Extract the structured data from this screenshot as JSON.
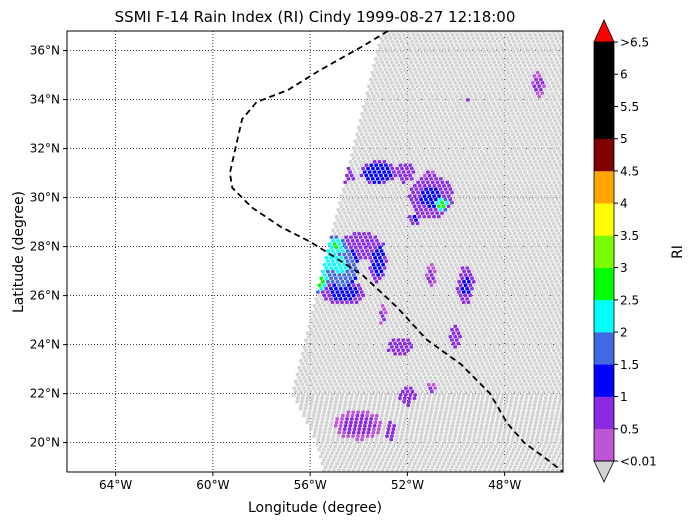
{
  "figure": {
    "title": "SSMI F-14 Rain Index (RI) Cindy 1999-08-27 12:18:00",
    "xlabel": "Longitude (degree)",
    "ylabel": "Latitude (degree)",
    "colorbar_label": "RI"
  },
  "chart_data": {
    "type": "heatmap",
    "title": "SSMI F-14 Rain Index (RI) Cindy 1999-08-27 12:18:00",
    "xlabel": "Longitude (degree)",
    "ylabel": "Latitude (degree)",
    "xlim": [
      -66,
      -45.6
    ],
    "ylim": [
      18.8,
      36.8
    ],
    "x_ticks": [
      {
        "value": -64,
        "label": "64°W"
      },
      {
        "value": -60,
        "label": "60°W"
      },
      {
        "value": -56,
        "label": "56°W"
      },
      {
        "value": -52,
        "label": "52°W"
      },
      {
        "value": -48,
        "label": "48°W"
      }
    ],
    "y_ticks": [
      {
        "value": 20,
        "label": "20°N"
      },
      {
        "value": 22,
        "label": "22°N"
      },
      {
        "value": 24,
        "label": "24°N"
      },
      {
        "value": 26,
        "label": "26°N"
      },
      {
        "value": 28,
        "label": "28°N"
      },
      {
        "value": 30,
        "label": "30°N"
      },
      {
        "value": 32,
        "label": "32°N"
      },
      {
        "value": 34,
        "label": "34°N"
      },
      {
        "value": 36,
        "label": "36°N"
      }
    ],
    "grid": "dotted",
    "swath_edges": {
      "west": [
        [
          -53,
          36.8
        ],
        [
          -54.2,
          32
        ],
        [
          -55.7,
          26
        ],
        [
          -56.7,
          22
        ],
        [
          -55.7,
          20
        ],
        [
          -55.4,
          18.8
        ]
      ],
      "east": [
        [
          -45.6,
          18.8
        ],
        [
          -45.6,
          36.8
        ]
      ],
      "no_rain_color": "#d3d3d3"
    },
    "track_lon_lat": [
      [
        -52.8,
        36.8
      ],
      [
        -53.8,
        36.2
      ],
      [
        -55.6,
        35.2
      ],
      [
        -56.9,
        34.4
      ],
      [
        -58.2,
        33.9
      ],
      [
        -58.8,
        33.2
      ],
      [
        -59.1,
        31.9
      ],
      [
        -59.3,
        31.0
      ],
      [
        -59.2,
        30.4
      ],
      [
        -58.4,
        29.6
      ],
      [
        -57.2,
        28.8
      ],
      [
        -56.0,
        28.2
      ],
      [
        -55.2,
        27.7
      ],
      [
        -53.8,
        26.8
      ],
      [
        -52.4,
        25.5
      ],
      [
        -51.2,
        24.2
      ],
      [
        -49.8,
        23.2
      ],
      [
        -48.6,
        22.0
      ],
      [
        -47.9,
        20.8
      ],
      [
        -47.2,
        20.0
      ],
      [
        -46.1,
        19.2
      ],
      [
        -45.6,
        18.8
      ]
    ],
    "colorbar": {
      "label": "RI",
      "bounds": [
        0.01,
        0.5,
        1,
        1.5,
        2,
        2.5,
        3,
        3.5,
        4,
        4.5,
        5,
        5.5,
        6,
        6.5
      ],
      "colors": [
        "#bd55d6",
        "#8a2be2",
        "#0000ff",
        "#4169e1",
        "#00ffff",
        "#00ff00",
        "#7cfc00",
        "#ffff00",
        "#ffa500",
        "#800000",
        "#000000",
        "#000000",
        "#000000"
      ],
      "under_color": "#d3d3d3",
      "over_color": "#ff0000",
      "tick_labels": [
        "<0.01",
        "0.5",
        "1",
        "1.5",
        "2",
        "2.5",
        "3",
        "3.5",
        "4",
        "4.5",
        "5",
        "5.5",
        "6",
        ">6.5"
      ]
    },
    "rain_clusters": [
      {
        "lon": -55.2,
        "lat": 27.5,
        "rx": 0.8,
        "ry": 1.0,
        "ri": 2.2
      },
      {
        "lon": -54.7,
        "lat": 27.2,
        "rx": 0.7,
        "ry": 0.9,
        "ri": 2.1
      },
      {
        "lon": -55.6,
        "lat": 26.6,
        "rx": 0.35,
        "ry": 0.5,
        "ri": 2.7
      },
      {
        "lon": -54.9,
        "lat": 28.0,
        "rx": 0.4,
        "ry": 0.4,
        "ri": 2.6
      },
      {
        "lon": -54.6,
        "lat": 26.1,
        "rx": 0.9,
        "ry": 0.5,
        "ri": 1.2
      },
      {
        "lon": -53.9,
        "lat": 28.0,
        "rx": 0.8,
        "ry": 0.6,
        "ri": 1.0
      },
      {
        "lon": -53.2,
        "lat": 27.4,
        "rx": 0.35,
        "ry": 0.9,
        "ri": 1.2
      },
      {
        "lon": -53.2,
        "lat": 31.0,
        "rx": 0.7,
        "ry": 0.5,
        "ri": 1.3
      },
      {
        "lon": -54.6,
        "lat": 30.9,
        "rx": 0.5,
        "ry": 0.3,
        "ri": 0.9
      },
      {
        "lon": -52.1,
        "lat": 31.0,
        "rx": 0.4,
        "ry": 0.4,
        "ri": 0.8
      },
      {
        "lon": -51.0,
        "lat": 30.0,
        "rx": 0.9,
        "ry": 0.9,
        "ri": 1.1
      },
      {
        "lon": -50.6,
        "lat": 29.7,
        "rx": 0.3,
        "ry": 0.3,
        "ri": 2.7
      },
      {
        "lon": -49.6,
        "lat": 26.4,
        "rx": 0.35,
        "ry": 0.8,
        "ri": 1.1
      },
      {
        "lon": -50.0,
        "lat": 24.3,
        "rx": 0.25,
        "ry": 0.5,
        "ri": 0.8
      },
      {
        "lon": -51.0,
        "lat": 26.8,
        "rx": 0.2,
        "ry": 0.5,
        "ri": 0.6
      },
      {
        "lon": -52.3,
        "lat": 23.9,
        "rx": 0.5,
        "ry": 0.4,
        "ri": 1.0
      },
      {
        "lon": -52.0,
        "lat": 21.9,
        "rx": 0.35,
        "ry": 0.4,
        "ri": 0.9
      },
      {
        "lon": -51.0,
        "lat": 22.2,
        "rx": 0.2,
        "ry": 0.2,
        "ri": 0.6
      },
      {
        "lon": -54.0,
        "lat": 20.7,
        "rx": 1.0,
        "ry": 0.6,
        "ri": 0.6
      },
      {
        "lon": -52.7,
        "lat": 20.5,
        "rx": 0.25,
        "ry": 0.4,
        "ri": 0.8
      },
      {
        "lon": -46.6,
        "lat": 34.6,
        "rx": 0.3,
        "ry": 0.5,
        "ri": 0.6
      },
      {
        "lon": -49.5,
        "lat": 34.0,
        "rx": 0.2,
        "ry": 0.1,
        "ri": 0.8
      },
      {
        "lon": -51.1,
        "lat": 30.9,
        "rx": 0.2,
        "ry": 0.3,
        "ri": 0.6
      },
      {
        "lon": -53.0,
        "lat": 25.2,
        "rx": 0.15,
        "ry": 0.4,
        "ri": 0.6
      },
      {
        "lon": -51.7,
        "lat": 29.1,
        "rx": 0.25,
        "ry": 0.25,
        "ri": 1.1
      }
    ]
  }
}
